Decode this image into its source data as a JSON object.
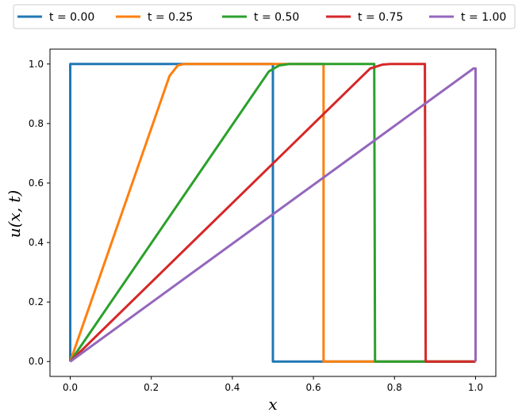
{
  "chart_data": {
    "type": "line",
    "xlabel": "x",
    "ylabel": "u(x, t)",
    "xlim": [
      -0.05,
      1.05
    ],
    "ylim": [
      -0.05,
      1.05
    ],
    "xticks": [
      "0.0",
      "0.2",
      "0.4",
      "0.6",
      "0.8",
      "1.0"
    ],
    "yticks": [
      "0.0",
      "0.2",
      "0.4",
      "0.6",
      "0.8",
      "1.0"
    ],
    "grid": false,
    "legend_position": "top, above plot, single row",
    "series": [
      {
        "name": "t = 0.00",
        "color": "#1f77b4",
        "x": [
          0.0,
          0.0,
          0.5,
          0.5,
          1.0
        ],
        "y": [
          0.0,
          1.0,
          1.0,
          0.0,
          0.0
        ]
      },
      {
        "name": "t = 0.25",
        "color": "#ff7f0e",
        "x": [
          0.0,
          0.245,
          0.265,
          0.28,
          0.625,
          0.625,
          1.0
        ],
        "y": [
          0.0,
          0.96,
          0.995,
          1.0,
          1.0,
          0.0,
          0.0
        ]
      },
      {
        "name": "t = 0.50",
        "color": "#2ca02c",
        "x": [
          0.0,
          0.49,
          0.515,
          0.54,
          0.75,
          0.752,
          1.0
        ],
        "y": [
          0.0,
          0.975,
          0.995,
          1.0,
          1.0,
          0.0,
          0.0
        ]
      },
      {
        "name": "t = 0.75",
        "color": "#d62728",
        "x": [
          0.0,
          0.74,
          0.77,
          0.79,
          0.875,
          0.877,
          1.0
        ],
        "y": [
          0.0,
          0.985,
          0.998,
          1.0,
          1.0,
          0.0,
          0.0
        ]
      },
      {
        "name": "t = 1.00",
        "color": "#9467bd",
        "x": [
          0.0,
          0.995,
          1.0,
          1.0
        ],
        "y": [
          0.0,
          0.985,
          0.985,
          0.0
        ]
      }
    ]
  }
}
